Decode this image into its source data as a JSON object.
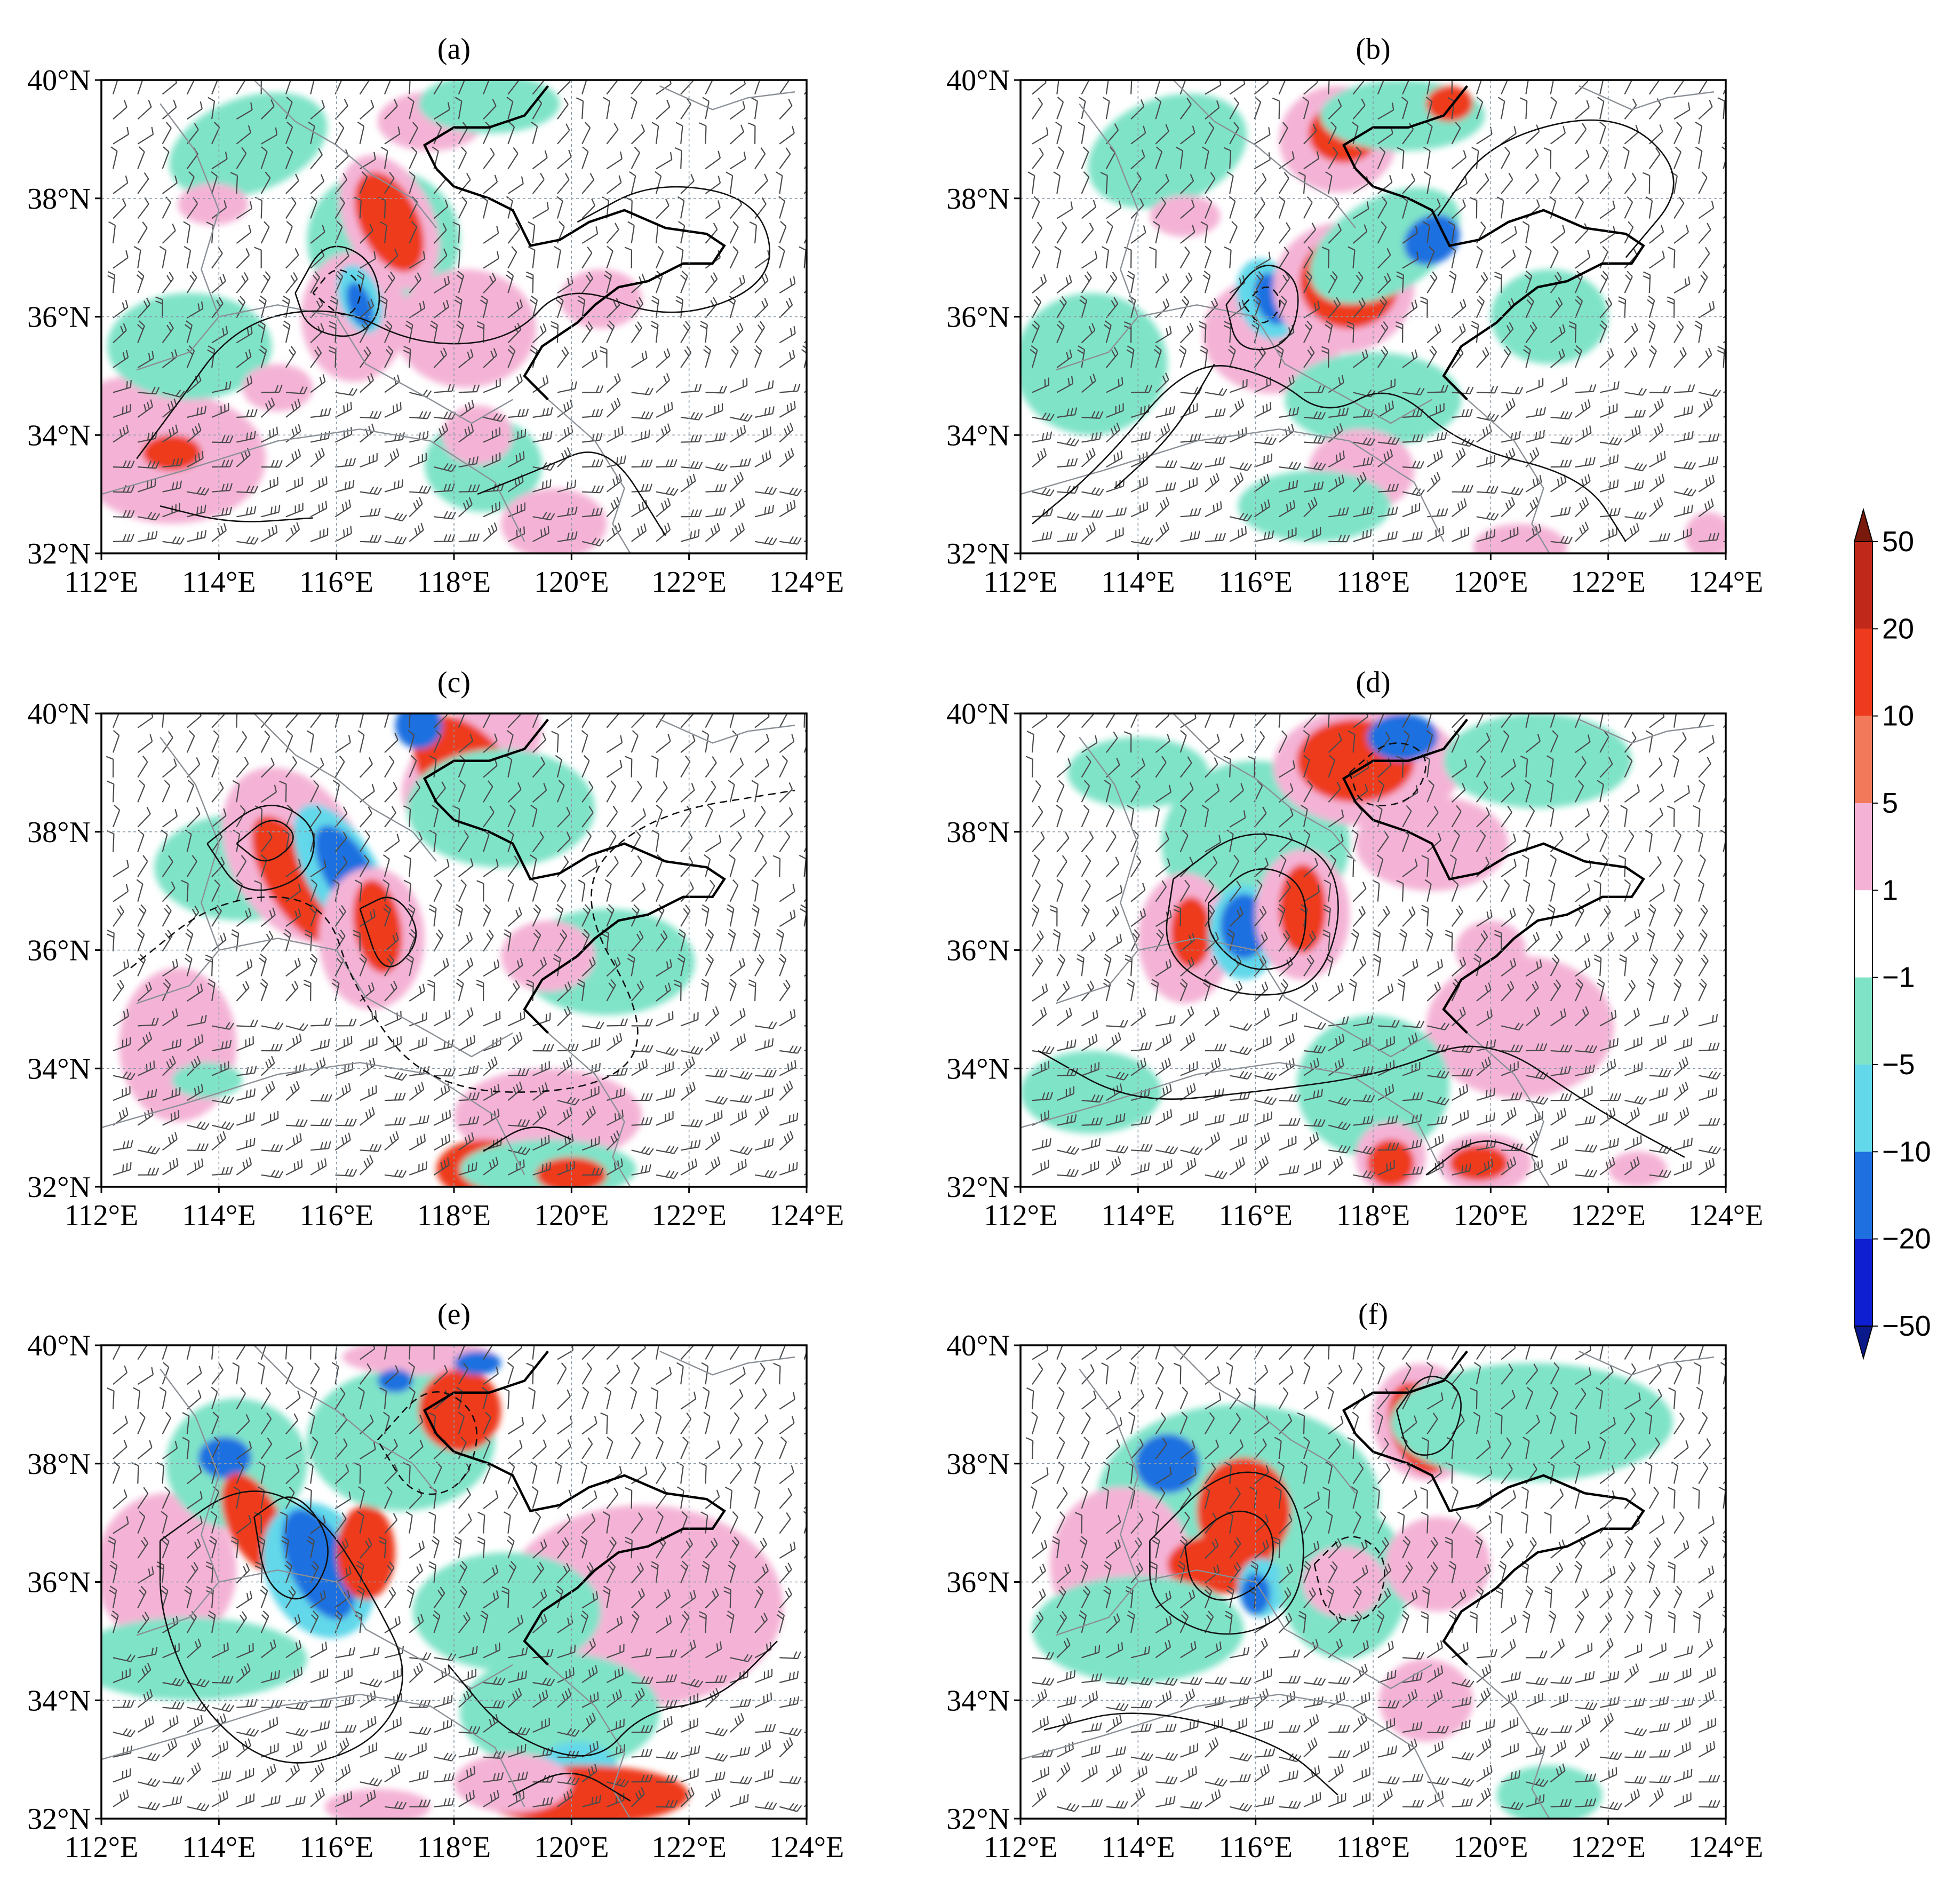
{
  "figure": {
    "panels": [
      {
        "id": "a",
        "title": "(a)"
      },
      {
        "id": "b",
        "title": "(b)"
      },
      {
        "id": "c",
        "title": "(c)"
      },
      {
        "id": "d",
        "title": "(d)"
      },
      {
        "id": "e",
        "title": "(e)"
      },
      {
        "id": "f",
        "title": "(f)"
      }
    ],
    "lat_ticks": [
      "32°N",
      "34°N",
      "36°N",
      "38°N",
      "40°N"
    ],
    "lon_ticks": [
      "112°E",
      "114°E",
      "116°E",
      "118°E",
      "120°E",
      "122°E",
      "124°E"
    ],
    "extent": {
      "lon": [
        112,
        124
      ],
      "lat": [
        32,
        40
      ]
    }
  },
  "colorbar": {
    "labels": [
      "50",
      "20",
      "10",
      "5",
      "1",
      "−1",
      "−5",
      "−10",
      "−20",
      "−50"
    ],
    "colors": [
      "#7a1a0c",
      "#c0281a",
      "#ee3a1e",
      "#f27a5a",
      "#f4b3d6",
      "#ffffff",
      "#7fe3c8",
      "#62d8ea",
      "#1e6fe0",
      "#0d1fd0",
      "#0a1a8a"
    ]
  },
  "colors": {
    "pink": "#f4b3d6",
    "teal": "#7fe3c8",
    "red": "#ee3a1e",
    "darkred": "#c8271a",
    "blue": "#1e6fe0",
    "darkblue": "#0d1fd0",
    "cyan": "#62d8ea",
    "grid": "#8c9aa8",
    "coast": "#000000",
    "border": "#8a8f96",
    "barb": "#555555"
  }
}
